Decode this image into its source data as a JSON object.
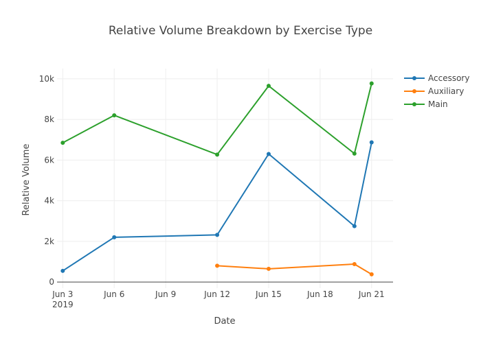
{
  "chart_data": {
    "type": "line",
    "title": "Relative Volume Breakdown by Exercise Type",
    "xlabel": "Date",
    "ylabel": "Relative Volume",
    "x_ticks": [
      "Jun 3",
      "Jun 6",
      "Jun 9",
      "Jun 12",
      "Jun 15",
      "Jun 18",
      "Jun 21"
    ],
    "x_tick_dates": [
      "2019-06-03",
      "2019-06-06",
      "2019-06-09",
      "2019-06-12",
      "2019-06-15",
      "2019-06-18",
      "2019-06-21"
    ],
    "x_year_label": "2019",
    "xlim": [
      "2019-06-02T16:00",
      "2019-06-22T06:00"
    ],
    "y_ticks": [
      "0",
      "2k",
      "4k",
      "6k",
      "8k",
      "10k"
    ],
    "y_tick_values": [
      0,
      2000,
      4000,
      6000,
      8000,
      10000
    ],
    "ylim": [
      -300,
      10500
    ],
    "grid": true,
    "legend_position": "top-right",
    "series": [
      {
        "name": "Accessory",
        "color": "#1f77b4",
        "x": [
          "2019-06-03",
          "2019-06-06",
          "2019-06-12",
          "2019-06-15",
          "2019-06-20",
          "2019-06-21"
        ],
        "y": [
          550,
          2200,
          2320,
          6300,
          2750,
          6870
        ]
      },
      {
        "name": "Auxiliary",
        "color": "#ff7f0e",
        "x": [
          "2019-06-12",
          "2019-06-15",
          "2019-06-20",
          "2019-06-21"
        ],
        "y": [
          800,
          650,
          880,
          380
        ]
      },
      {
        "name": "Main",
        "color": "#2ca02c",
        "x": [
          "2019-06-03",
          "2019-06-06",
          "2019-06-12",
          "2019-06-15",
          "2019-06-20",
          "2019-06-21"
        ],
        "y": [
          6850,
          8200,
          6270,
          9650,
          6320,
          9770
        ]
      }
    ]
  }
}
